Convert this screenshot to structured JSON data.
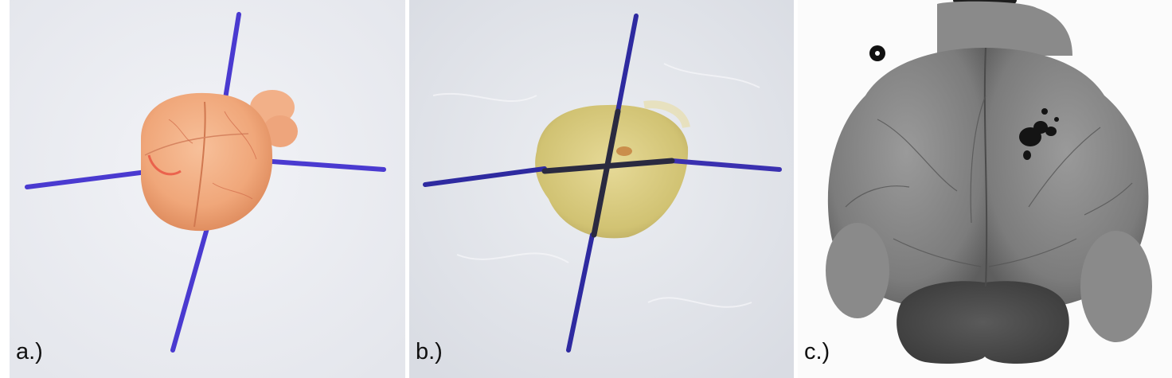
{
  "panels": [
    {
      "label": "a.)",
      "description_icon": "stained-brain-photo"
    },
    {
      "label": "b.)",
      "description_icon": "cleared-brain-photo"
    },
    {
      "label": "c.)",
      "description_icon": "xray-brain-image"
    }
  ],
  "colors": {
    "marker_line": "#4a3ad0",
    "brain_orange": "#f0a878",
    "cleared_yellow": "#d8c878",
    "xray_gray": "#6a6a6a"
  }
}
